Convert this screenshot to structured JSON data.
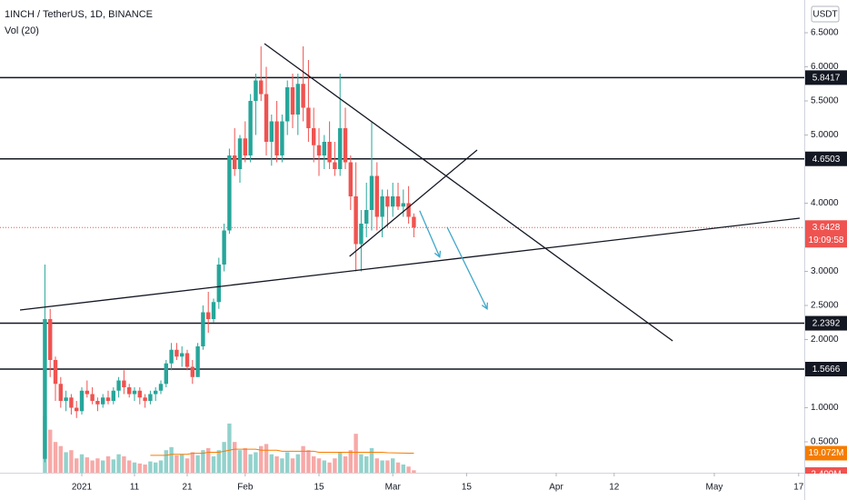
{
  "chart_data": {
    "type": "candlestick",
    "title": "1INCH / TetherUS, 1D, BINANCE",
    "volume_title": "Vol (20)",
    "currency": "USDT",
    "up_color": "#26a69a",
    "down_color": "#ef5350",
    "categories": [
      null,
      null,
      null,
      null,
      null,
      null,
      null,
      null,
      null,
      null,
      null,
      null,
      null,
      null,
      null,
      null,
      null,
      null,
      null,
      null,
      null,
      null,
      null,
      null,
      null,
      null,
      null,
      null,
      null,
      null,
      null,
      null,
      null,
      null,
      null,
      null,
      null,
      null,
      null,
      null,
      null,
      null,
      null,
      null,
      null,
      null,
      null,
      null,
      null,
      null,
      null,
      null,
      null,
      null,
      null,
      null,
      null,
      null,
      null,
      null,
      null,
      null,
      null,
      null,
      null,
      null,
      null,
      null,
      null,
      null,
      null
    ],
    "open": [
      0.25,
      2.3,
      1.7,
      1.35,
      1.1,
      1.15,
      1.0,
      0.95,
      1.25,
      1.2,
      1.1,
      1.05,
      1.15,
      1.1,
      1.25,
      1.4,
      1.3,
      1.2,
      1.25,
      1.15,
      1.1,
      1.2,
      1.25,
      1.35,
      1.65,
      1.85,
      1.75,
      1.8,
      1.6,
      1.45,
      1.9,
      2.4,
      2.3,
      2.55,
      3.1,
      3.6,
      4.7,
      4.5,
      4.95,
      4.7,
      5.5,
      5.8,
      5.6,
      4.9,
      5.2,
      4.7,
      5.2,
      5.7,
      5.3,
      5.75,
      5.4,
      5.1,
      4.85,
      4.7,
      4.9,
      4.6,
      4.5,
      5.1,
      4.6,
      4.1,
      3.4,
      3.7,
      3.9,
      4.4,
      3.8,
      4.1,
      3.95,
      4.1,
      3.95,
      4.0,
      3.8
    ],
    "high": [
      3.1,
      2.45,
      1.75,
      1.45,
      1.25,
      1.2,
      1.1,
      1.3,
      1.4,
      1.3,
      1.15,
      1.2,
      1.25,
      1.3,
      1.45,
      1.55,
      1.35,
      1.3,
      1.3,
      1.2,
      1.25,
      1.3,
      1.4,
      1.7,
      1.95,
      1.95,
      1.9,
      1.85,
      1.7,
      1.95,
      2.5,
      2.7,
      2.6,
      3.2,
      3.7,
      4.8,
      5.1,
      5.0,
      5.2,
      5.6,
      5.9,
      6.3,
      6.0,
      5.3,
      5.5,
      5.3,
      5.8,
      5.9,
      5.9,
      6.3,
      6.1,
      5.4,
      5.1,
      5.0,
      5.2,
      4.9,
      5.9,
      5.4,
      4.7,
      4.6,
      3.9,
      4.3,
      5.2,
      4.6,
      4.2,
      4.2,
      4.3,
      4.3,
      4.2,
      4.25,
      3.85
    ],
    "low": [
      0.2,
      1.45,
      1.1,
      1.0,
      0.95,
      0.9,
      0.85,
      0.9,
      1.15,
      1.05,
      0.95,
      1.0,
      1.05,
      1.05,
      1.15,
      1.2,
      1.15,
      1.1,
      1.05,
      1.0,
      1.05,
      1.1,
      1.2,
      1.3,
      1.55,
      1.7,
      1.6,
      1.55,
      1.35,
      1.45,
      1.85,
      2.1,
      2.25,
      2.45,
      3.0,
      3.55,
      4.4,
      4.3,
      4.6,
      4.6,
      5.0,
      5.5,
      4.7,
      4.55,
      4.6,
      4.6,
      5.0,
      5.1,
      5.0,
      5.2,
      4.9,
      4.6,
      4.4,
      4.5,
      4.5,
      4.4,
      4.4,
      4.5,
      3.9,
      3.0,
      3.0,
      3.5,
      3.6,
      3.6,
      3.5,
      3.65,
      3.8,
      3.9,
      3.8,
      3.7,
      3.5
    ],
    "close": [
      2.3,
      1.7,
      1.35,
      1.1,
      1.15,
      1.0,
      0.95,
      1.25,
      1.2,
      1.1,
      1.05,
      1.15,
      1.1,
      1.25,
      1.4,
      1.3,
      1.2,
      1.25,
      1.15,
      1.1,
      1.2,
      1.25,
      1.35,
      1.65,
      1.85,
      1.75,
      1.8,
      1.6,
      1.45,
      1.9,
      2.4,
      2.3,
      2.55,
      3.1,
      3.6,
      4.7,
      4.5,
      4.95,
      4.7,
      5.5,
      5.8,
      5.6,
      4.9,
      5.2,
      4.7,
      5.2,
      5.7,
      5.3,
      5.75,
      5.4,
      5.1,
      4.85,
      4.7,
      4.9,
      4.6,
      4.5,
      5.1,
      4.6,
      4.1,
      3.4,
      3.7,
      3.9,
      4.4,
      3.8,
      4.1,
      3.95,
      4.1,
      3.95,
      4.0,
      3.8,
      3.6428
    ],
    "countdown": "19:09:58",
    "volume": {
      "values": [
        55,
        42,
        30,
        26,
        20,
        22,
        14,
        18,
        15,
        12,
        14,
        12,
        16,
        13,
        18,
        16,
        12,
        10,
        9,
        8,
        11,
        10,
        12,
        22,
        25,
        17,
        18,
        14,
        20,
        17,
        22,
        24,
        16,
        22,
        30,
        48,
        30,
        22,
        24,
        18,
        20,
        26,
        28,
        18,
        16,
        14,
        20,
        14,
        18,
        26,
        22,
        16,
        14,
        12,
        10,
        14,
        20,
        16,
        22,
        38,
        18,
        16,
        24,
        14,
        12,
        12,
        14,
        10,
        8,
        6,
        2.409
      ],
      "last_label": "2.409M"
    },
    "volume_ma": {
      "color": "#f57c00",
      "values": [
        null,
        null,
        null,
        null,
        null,
        null,
        null,
        null,
        null,
        null,
        null,
        null,
        null,
        null,
        null,
        null,
        null,
        null,
        null,
        null,
        17,
        17,
        17,
        17,
        18,
        18,
        18,
        18,
        19,
        19,
        19,
        20,
        20,
        20,
        21,
        22,
        23,
        23,
        23,
        23,
        23,
        22,
        22,
        22,
        22,
        21,
        21,
        21,
        21,
        21,
        21,
        21,
        20,
        20,
        20,
        20,
        20,
        20,
        20,
        20,
        20,
        20,
        20,
        20,
        20,
        19.5,
        19.4,
        19.3,
        19.2,
        19.1,
        19.072
      ],
      "last_label": "19.072M"
    },
    "levels": [
      5.8417,
      4.6503,
      2.2392,
      1.5666
    ],
    "drawings": [
      {
        "x": [
          -4.72,
          143.2
        ],
        "y": [
          2.433,
          3.78
        ],
        "color": "#131722",
        "arrow": false
      },
      {
        "x": [
          41.65,
          119.1
        ],
        "y": [
          6.34,
          1.98
        ],
        "color": "#131722",
        "arrow": false
      },
      {
        "x": [
          57.8,
          82.0
        ],
        "y": [
          3.22,
          4.78
        ],
        "color": "#131722",
        "arrow": false
      },
      {
        "x": [
          71.1,
          74.9
        ],
        "y": [
          3.89,
          3.21
        ],
        "color": "#3fa7c9",
        "arrow": true
      },
      {
        "x": [
          76.3,
          83.9
        ],
        "y": [
          3.65,
          2.45
        ],
        "color": "#3fa7c9",
        "arrow": true
      }
    ],
    "xlim": [
      -8.52,
      144.07
    ],
    "ylim": [
      0.0467,
      6.98
    ],
    "xticks": [
      {
        "value": 7,
        "label": "2021"
      },
      {
        "value": 17,
        "label": "11"
      },
      {
        "value": 27,
        "label": "21"
      },
      {
        "value": 38,
        "label": "Feb"
      },
      {
        "value": 52,
        "label": "15"
      },
      {
        "value": 66,
        "label": "Mar"
      },
      {
        "value": 80,
        "label": "15"
      },
      {
        "value": 97,
        "label": "Apr"
      },
      {
        "value": 108,
        "label": "12"
      },
      {
        "value": 127,
        "label": "May"
      },
      {
        "value": 143,
        "label": "17"
      }
    ],
    "yticks": [
      {
        "value": 0.5,
        "label": "0.5000"
      },
      {
        "value": 1,
        "label": "1.0000"
      },
      {
        "value": 2,
        "label": "2.0000"
      },
      {
        "value": 2.5,
        "label": "2.5000"
      },
      {
        "value": 3,
        "label": "3.0000"
      },
      {
        "value": 4,
        "label": "4.0000"
      },
      {
        "value": 5,
        "label": "5.0000"
      },
      {
        "value": 5.5,
        "label": "5.5000"
      },
      {
        "value": 6,
        "label": "6.0000"
      },
      {
        "value": 6.5,
        "label": "6.5000"
      }
    ]
  }
}
